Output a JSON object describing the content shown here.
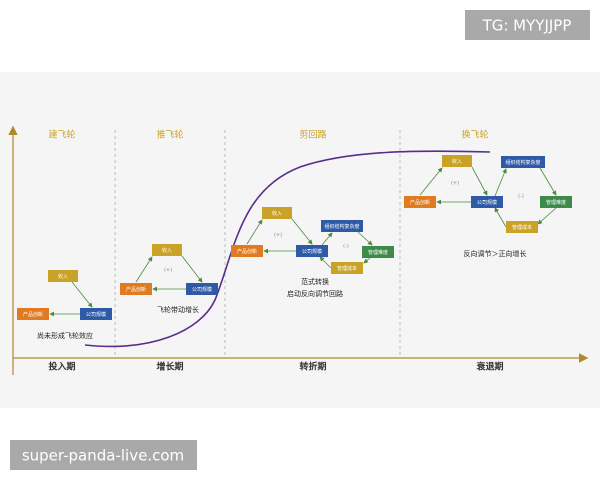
{
  "watermarks": {
    "top": "TG: MYYJJPP",
    "bottom": "super-panda-live.com"
  },
  "stages": [
    {
      "title": "建飞轮",
      "phase": "投入期",
      "nodes": [
        "收入",
        "产品创新",
        "公司规模"
      ],
      "loop_signs": [],
      "note": [
        "尚未形成飞轮效应"
      ]
    },
    {
      "title": "推飞轮",
      "phase": "增长期",
      "nodes": [
        "收入",
        "产品创新",
        "公司规模"
      ],
      "loop_signs": [
        "(+)"
      ],
      "note": [
        "飞轮带动增长"
      ]
    },
    {
      "title": "剪回路",
      "phase": "转折期",
      "nodes": [
        "收入",
        "产品创新",
        "公司规模",
        "组织结构复杂度",
        "管理难度",
        "管理成本"
      ],
      "loop_signs": [
        "(+)",
        "(-)"
      ],
      "note": [
        "范式转换",
        "启动反向调节回路"
      ]
    },
    {
      "title": "换飞轮",
      "phase": "衰退期",
      "nodes": [
        "收入",
        "产品创新",
        "公司规模",
        "组织结构复杂度",
        "管理难度",
        "管理成本"
      ],
      "loop_signs": [
        "(+)",
        "(-)"
      ],
      "note": [
        "反向调节＞正向增长"
      ]
    }
  ]
}
